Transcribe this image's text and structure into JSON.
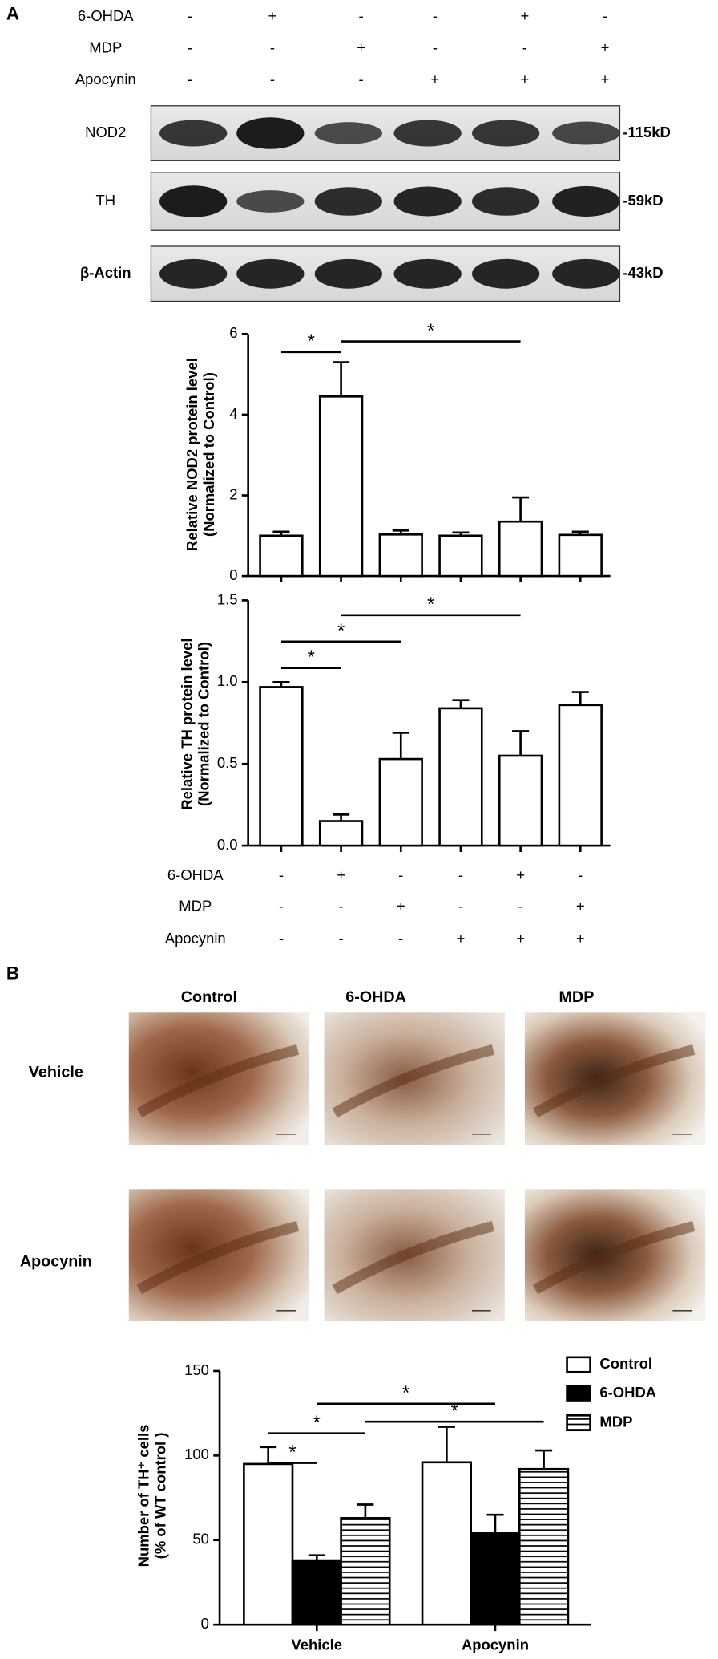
{
  "panel_labels": [
    "A",
    "B"
  ],
  "blot": {
    "treatments": [
      {
        "name": "6-OHDA",
        "signs": [
          "-",
          "+",
          "-",
          "-",
          "+",
          "-"
        ]
      },
      {
        "name": "MDP",
        "signs": [
          "-",
          "-",
          "+",
          "-",
          "-",
          "+"
        ]
      },
      {
        "name": "Apocynin",
        "signs": [
          "-",
          "-",
          "-",
          "+",
          "+",
          "+"
        ]
      }
    ],
    "bands": [
      {
        "name": "NOD2",
        "size": "-115kD"
      },
      {
        "name": "TH",
        "size": "-59kD"
      },
      {
        "name": "β-Actin",
        "size": "-43kD"
      }
    ]
  },
  "chart_data": [
    {
      "type": "bar",
      "ylabel": [
        "Relative NOD2 protein level",
        "(Normalized to Control)"
      ],
      "values": [
        1.0,
        4.45,
        1.03,
        1.0,
        1.35,
        1.02
      ],
      "errors": [
        0.1,
        0.85,
        0.1,
        0.08,
        0.6,
        0.08
      ],
      "color": "#ffffff",
      "ylim": [
        0,
        6
      ],
      "yticks": [
        0,
        2,
        4,
        6
      ],
      "significance": [
        {
          "label": "*",
          "bars": [
            0,
            1
          ]
        },
        {
          "label": "*",
          "bars": [
            1,
            4
          ]
        }
      ]
    },
    {
      "type": "bar",
      "ylabel": [
        "Relative TH protein level",
        "(Normalized to Control)"
      ],
      "values": [
        0.97,
        0.15,
        0.53,
        0.84,
        0.55,
        0.86
      ],
      "errors": [
        0.03,
        0.04,
        0.16,
        0.05,
        0.15,
        0.08
      ],
      "color": "#ffffff",
      "ylim": [
        0,
        1.5
      ],
      "yticks": [
        {
          "value": 0,
          "label": "0.0"
        },
        0.5,
        {
          "value": 1,
          "label": "1.0"
        },
        1.5
      ],
      "significance": [
        {
          "label": "*",
          "bars": [
            0,
            1
          ]
        },
        {
          "label": "*",
          "bars": [
            0,
            2
          ]
        },
        {
          "label": "*",
          "bars": [
            1,
            4
          ]
        }
      ],
      "treatments": [
        {
          "name": "6-OHDA",
          "signs": [
            "-",
            "+",
            "-",
            "-",
            "+",
            "-"
          ]
        },
        {
          "name": "MDP",
          "signs": [
            "-",
            "-",
            "+",
            "-",
            "-",
            "+"
          ]
        },
        {
          "name": "Apocynin",
          "signs": [
            "-",
            "-",
            "-",
            "+",
            "+",
            "+"
          ]
        }
      ]
    },
    {
      "type": "grouped-bar",
      "ylabel": [
        "Number of TH⁺ cells",
        "(% of WT control )"
      ],
      "categories": [
        "Vehicle",
        "Apocynin"
      ],
      "series": [
        {
          "name": "Control",
          "color": "#ffffff",
          "values": [
            95,
            96
          ],
          "errors": [
            10,
            21
          ]
        },
        {
          "name": "6-OHDA",
          "color": "#000000",
          "values": [
            38,
            54
          ],
          "errors": [
            3,
            11
          ]
        },
        {
          "name": "MDP",
          "color": "#ffffff",
          "hatch": "horizontal",
          "values": [
            63,
            92
          ],
          "errors": [
            8,
            11
          ]
        }
      ],
      "ylim": [
        0,
        150
      ],
      "yticks": [
        0,
        50,
        100,
        150
      ],
      "legend": "top-right",
      "significance": [
        {
          "label": "*",
          "bars": [
            [
              0,
              0
            ],
            [
              1,
              0
            ]
          ]
        },
        {
          "label": "*",
          "bars": [
            [
              0,
              0
            ],
            [
              2,
              0
            ]
          ]
        },
        {
          "label": "*",
          "bars": [
            [
              1,
              0
            ],
            [
              1,
              1
            ]
          ]
        },
        {
          "label": "*",
          "bars": [
            [
              2,
              0
            ],
            [
              2,
              1
            ]
          ]
        }
      ]
    }
  ],
  "histology": {
    "columns": [
      "Control",
      "6-OHDA",
      "MDP"
    ],
    "rows": [
      "Vehicle",
      "Apocynin"
    ]
  }
}
